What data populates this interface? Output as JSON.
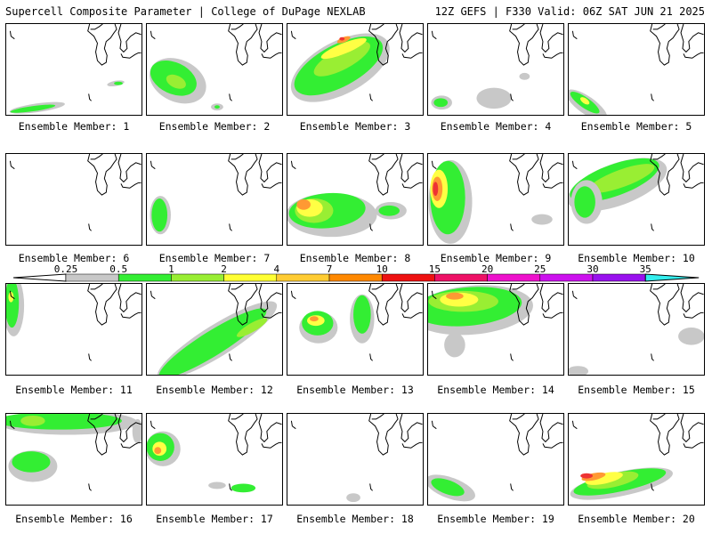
{
  "header": {
    "title": "Supercell Composite Parameter | College of DuPage NEXLAB",
    "run": "12Z GEFS | F330 Valid: 06Z SAT JUN 21 2025"
  },
  "panels": [
    {
      "label": "Ensemble Member: 1"
    },
    {
      "label": "Ensemble Member: 2"
    },
    {
      "label": "Ensemble Member: 3"
    },
    {
      "label": "Ensemble Member: 4"
    },
    {
      "label": "Ensemble Member: 5"
    },
    {
      "label": "Ensemble Member: 6"
    },
    {
      "label": "Ensemble Member: 7"
    },
    {
      "label": "Ensemble Member: 8"
    },
    {
      "label": "Ensemble Member: 9"
    },
    {
      "label": "Ensemble Member: 10"
    },
    {
      "label": "Ensemble Member: 11"
    },
    {
      "label": "Ensemble Member: 12"
    },
    {
      "label": "Ensemble Member: 13"
    },
    {
      "label": "Ensemble Member: 14"
    },
    {
      "label": "Ensemble Member: 15"
    },
    {
      "label": "Ensemble Member: 16"
    },
    {
      "label": "Ensemble Member: 17"
    },
    {
      "label": "Ensemble Member: 18"
    },
    {
      "label": "Ensemble Member: 19"
    },
    {
      "label": "Ensemble Member: 20"
    }
  ],
  "colorbar": {
    "ticks": [
      "0.25",
      "0.5",
      "1",
      "2",
      "4",
      "7",
      "10",
      "15",
      "20",
      "25",
      "30",
      "35"
    ],
    "colors": [
      "#c8c8c8",
      "#33ee33",
      "#99ee33",
      "#ffff33",
      "#ffcc33",
      "#ff8800",
      "#ee1111",
      "#ee1166",
      "#ee11cc",
      "#cc11ee",
      "#9911ee",
      "#bb77dd",
      "#33eeee"
    ]
  },
  "shading_colors": {
    "gray": "#c8c8c8",
    "green": "#33ee33",
    "lightgreen": "#99ee33",
    "yellow": "#ffff44",
    "orange": "#ff9933",
    "red": "#ee3333"
  }
}
